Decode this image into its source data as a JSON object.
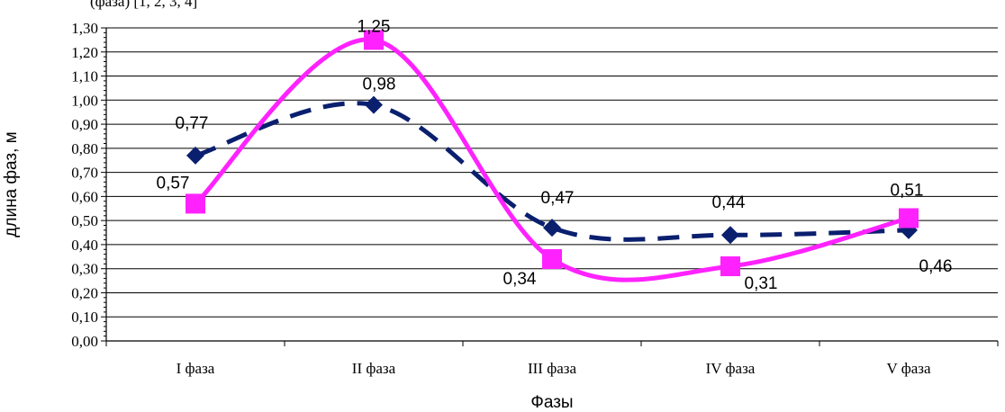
{
  "top_text": "(фаза) [1, 2, 3, 4]",
  "chart_data": {
    "type": "line",
    "title": "",
    "xlabel": "Фазы",
    "ylabel": "длина фаз, м",
    "categories": [
      "I фаза",
      "II фаза",
      "III фаза",
      "IV фаза",
      "V фаза"
    ],
    "ylim": [
      0,
      1.3
    ],
    "ytick_step": 0.1,
    "ytick_labels": [
      "0,00",
      "0,10",
      "0,20",
      "0,30",
      "0,40",
      "0,50",
      "0,60",
      "0,70",
      "0,80",
      "0,90",
      "1,00",
      "1,10",
      "1,20",
      "1,30"
    ],
    "grid": true,
    "legend": "none",
    "series": [
      {
        "values": [
          0.77,
          0.98,
          0.47,
          0.44,
          0.46
        ],
        "labels": [
          "0,77",
          "0,98",
          "0,47",
          "0,44",
          "0,46"
        ],
        "color": "#0a1f6e",
        "line_style": "dashed",
        "marker": "diamond"
      },
      {
        "values": [
          0.57,
          1.25,
          0.34,
          0.31,
          0.51
        ],
        "labels": [
          "0,57",
          "1,25",
          "0,34",
          "0,31",
          "0,51"
        ],
        "color": "#ff22ff",
        "line_style": "solid",
        "marker": "square"
      }
    ]
  }
}
